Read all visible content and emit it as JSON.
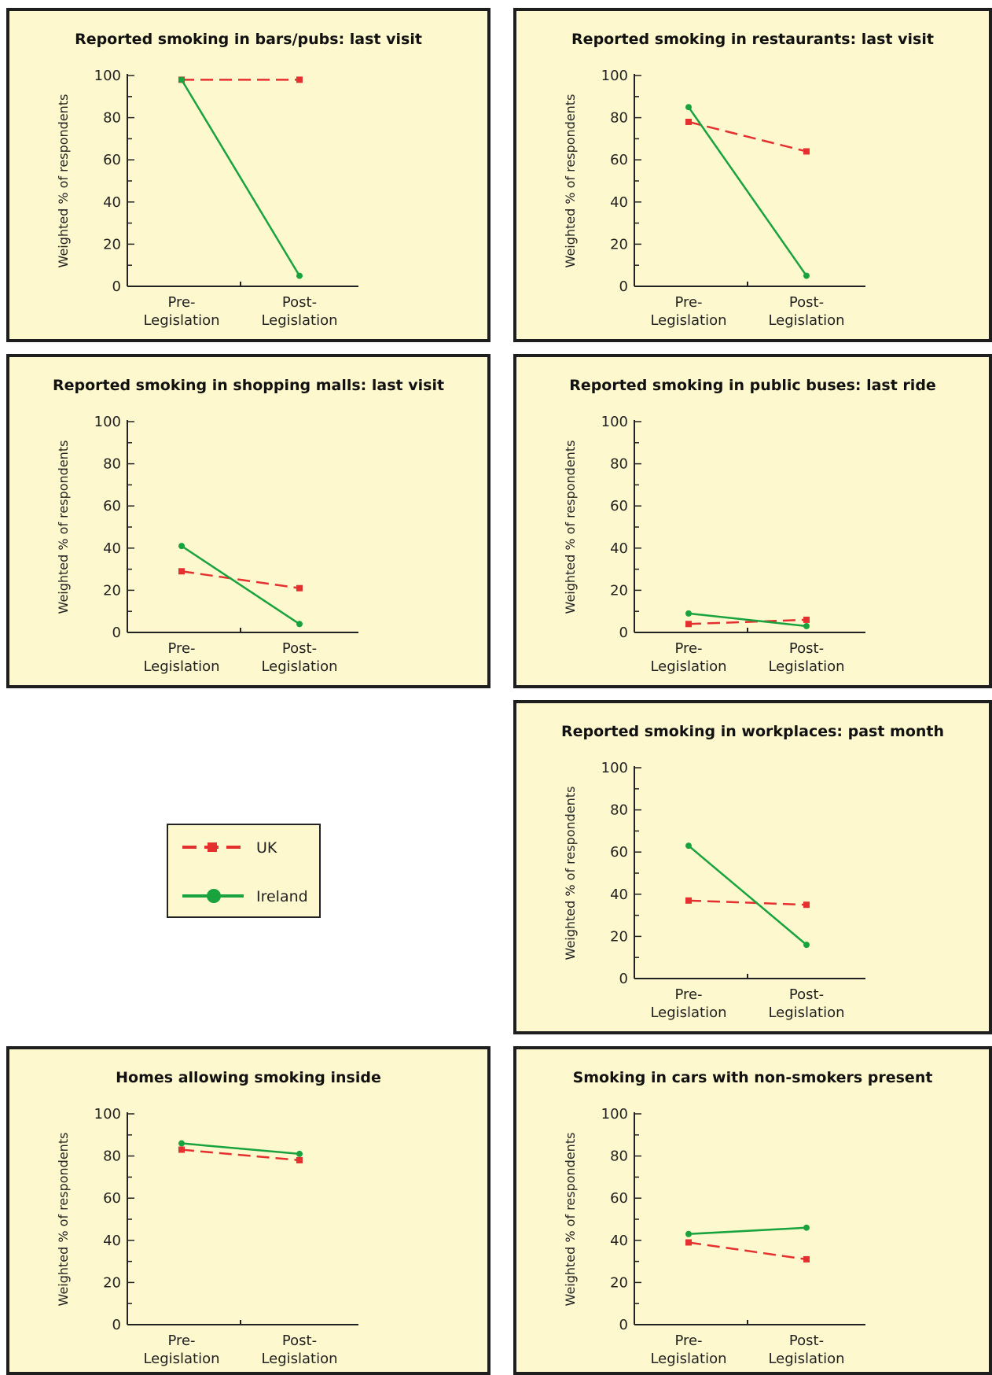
{
  "legend": {
    "uk_label": "UK",
    "ireland_label": "Ireland"
  },
  "colors": {
    "uk": "#e53030",
    "ireland": "#18a33f",
    "panel_bg": "#fdf8cd"
  },
  "y_axis_label": "Weighted % of respondents",
  "chart_data": [
    {
      "type": "line",
      "title": "Reported smoking in bars/pubs: last visit",
      "categories": [
        "Pre-\nLegislation",
        "Post-\nLegislation"
      ],
      "ylabel": "Weighted % of respondents",
      "ylim": [
        0,
        100
      ],
      "yticks": [
        0,
        20,
        40,
        60,
        80,
        100
      ],
      "series": [
        {
          "name": "UK",
          "values": [
            98,
            98
          ]
        },
        {
          "name": "Ireland",
          "values": [
            98,
            5
          ]
        }
      ]
    },
    {
      "type": "line",
      "title": "Reported smoking in restaurants: last visit",
      "categories": [
        "Pre-\nLegislation",
        "Post-\nLegislation"
      ],
      "ylabel": "Weighted % of respondents",
      "ylim": [
        0,
        100
      ],
      "yticks": [
        0,
        20,
        40,
        60,
        80,
        100
      ],
      "series": [
        {
          "name": "UK",
          "values": [
            78,
            64
          ]
        },
        {
          "name": "Ireland",
          "values": [
            85,
            5
          ]
        }
      ]
    },
    {
      "type": "line",
      "title": "Reported smoking in shopping malls: last visit",
      "categories": [
        "Pre-\nLegislation",
        "Post-\nLegislation"
      ],
      "ylabel": "Weighted % of respondents",
      "ylim": [
        0,
        100
      ],
      "yticks": [
        0,
        20,
        40,
        60,
        80,
        100
      ],
      "series": [
        {
          "name": "UK",
          "values": [
            29,
            21
          ]
        },
        {
          "name": "Ireland",
          "values": [
            41,
            4
          ]
        }
      ]
    },
    {
      "type": "line",
      "title": "Reported smoking in public buses: last ride",
      "categories": [
        "Pre-\nLegislation",
        "Post-\nLegislation"
      ],
      "ylabel": "Weighted % of respondents",
      "ylim": [
        0,
        100
      ],
      "yticks": [
        0,
        20,
        40,
        60,
        80,
        100
      ],
      "series": [
        {
          "name": "UK",
          "values": [
            4,
            6
          ]
        },
        {
          "name": "Ireland",
          "values": [
            9,
            3
          ]
        }
      ]
    },
    {
      "type": "line",
      "title": "Reported smoking in workplaces: past month",
      "categories": [
        "Pre-\nLegislation",
        "Post-\nLegislation"
      ],
      "ylabel": "Weighted % of respondents",
      "ylim": [
        0,
        100
      ],
      "yticks": [
        0,
        20,
        40,
        60,
        80,
        100
      ],
      "series": [
        {
          "name": "UK",
          "values": [
            37,
            35
          ]
        },
        {
          "name": "Ireland",
          "values": [
            63,
            16
          ]
        }
      ]
    },
    {
      "type": "line",
      "title": "Homes allowing smoking inside",
      "categories": [
        "Pre-\nLegislation",
        "Post-\nLegislation"
      ],
      "ylabel": "Weighted % of respondents",
      "ylim": [
        0,
        100
      ],
      "yticks": [
        0,
        20,
        40,
        60,
        80,
        100
      ],
      "series": [
        {
          "name": "UK",
          "values": [
            83,
            78
          ]
        },
        {
          "name": "Ireland",
          "values": [
            86,
            81
          ]
        }
      ]
    },
    {
      "type": "line",
      "title": "Smoking in cars with non-smokers present",
      "categories": [
        "Pre-\nLegislation",
        "Post-\nLegislation"
      ],
      "ylabel": "Weighted % of respondents",
      "ylim": [
        0,
        100
      ],
      "yticks": [
        0,
        20,
        40,
        60,
        80,
        100
      ],
      "series": [
        {
          "name": "UK",
          "values": [
            39,
            31
          ]
        },
        {
          "name": "Ireland",
          "values": [
            43,
            46
          ]
        }
      ]
    }
  ]
}
